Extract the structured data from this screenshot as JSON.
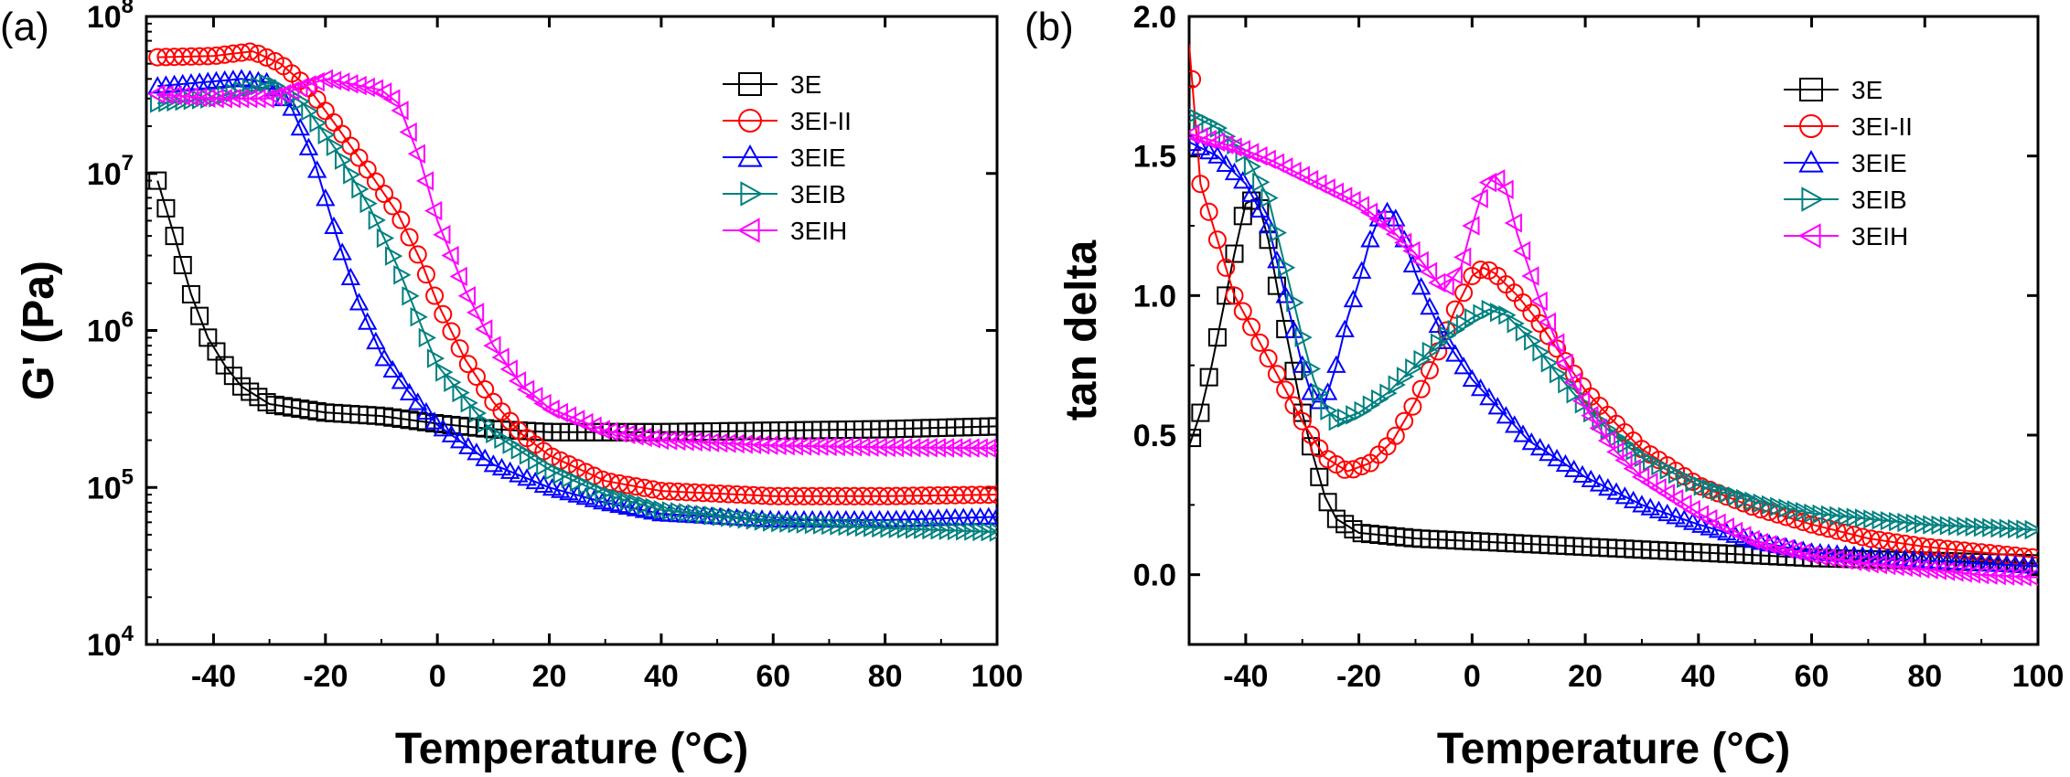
{
  "colors": {
    "3E": "#000000",
    "3EI-II": "#ff0000",
    "3EIE": "#0000ff",
    "3EIB": "#008080",
    "3EIH": "#ff00ff"
  },
  "chart_data": [
    {
      "panel_label": "(a)",
      "type": "scatter",
      "xlabel": "Temperature (°C)",
      "ylabel": "G' (Pa)",
      "xlim": [
        -52,
        100
      ],
      "ylim": [
        10000,
        100000000
      ],
      "yscale": "log",
      "x_ticks": [
        -40,
        -20,
        0,
        20,
        40,
        60,
        80,
        100
      ],
      "y_ticks": [
        {
          "base": "10",
          "exp": "4",
          "value": 10000
        },
        {
          "base": "10",
          "exp": "5",
          "value": 100000
        },
        {
          "base": "10",
          "exp": "6",
          "value": 1000000
        },
        {
          "base": "10",
          "exp": "7",
          "value": 10000000
        },
        {
          "base": "10",
          "exp": "8",
          "value": 100000000
        }
      ],
      "legend": "top-right",
      "series": [
        {
          "name": "3E",
          "marker": "square",
          "points": [
            [
              -50,
              9000000
            ],
            [
              -47,
              4000000
            ],
            [
              -44,
              1700000
            ],
            [
              -41,
              900000
            ],
            [
              -38,
              600000
            ],
            [
              -35,
              440000
            ],
            [
              -30,
              340000
            ],
            [
              -20,
              300000
            ],
            [
              -10,
              285000
            ],
            [
              0,
              255000
            ],
            [
              10,
              235000
            ],
            [
              20,
              225000
            ],
            [
              40,
              225000
            ],
            [
              60,
              230000
            ],
            [
              80,
              235000
            ],
            [
              100,
              245000
            ]
          ]
        },
        {
          "name": "3EI-II",
          "marker": "circle",
          "points": [
            [
              -50,
              55000000
            ],
            [
              -40,
              56000000
            ],
            [
              -33,
              60000000
            ],
            [
              -28,
              50000000
            ],
            [
              -23,
              35000000
            ],
            [
              -18,
              20000000
            ],
            [
              -12,
              10000000
            ],
            [
              -7,
              5500000
            ],
            [
              -3,
              2800000
            ],
            [
              0,
              1500000
            ],
            [
              5,
              650000
            ],
            [
              10,
              350000
            ],
            [
              15,
              220000
            ],
            [
              20,
              160000
            ],
            [
              30,
              110000
            ],
            [
              40,
              95000
            ],
            [
              60,
              88000
            ],
            [
              80,
              88000
            ],
            [
              100,
              90000
            ]
          ]
        },
        {
          "name": "3EIE",
          "marker": "triangle-up",
          "points": [
            [
              -50,
              36000000
            ],
            [
              -35,
              40000000
            ],
            [
              -30,
              38000000
            ],
            [
              -26,
              26000000
            ],
            [
              -22,
              12000000
            ],
            [
              -18,
              4000000
            ],
            [
              -14,
              1500000
            ],
            [
              -10,
              700000
            ],
            [
              -5,
              400000
            ],
            [
              0,
              250000
            ],
            [
              10,
              140000
            ],
            [
              20,
              100000
            ],
            [
              30,
              80000
            ],
            [
              40,
              68000
            ],
            [
              60,
              62000
            ],
            [
              80,
              62000
            ],
            [
              100,
              65000
            ]
          ]
        },
        {
          "name": "3EIB",
          "marker": "triangle-right",
          "points": [
            [
              -50,
              28000000
            ],
            [
              -40,
              30000000
            ],
            [
              -30,
              38000000
            ],
            [
              -24,
              28000000
            ],
            [
              -18,
              14000000
            ],
            [
              -12,
              6000000
            ],
            [
              -7,
              2500000
            ],
            [
              -3,
              1100000
            ],
            [
              0,
              600000
            ],
            [
              10,
              220000
            ],
            [
              20,
              130000
            ],
            [
              30,
              90000
            ],
            [
              40,
              72000
            ],
            [
              60,
              60000
            ],
            [
              80,
              55000
            ],
            [
              100,
              52000
            ]
          ]
        },
        {
          "name": "3EIH",
          "marker": "triangle-left",
          "points": [
            [
              -50,
              32000000
            ],
            [
              -40,
              30000000
            ],
            [
              -30,
              30000000
            ],
            [
              -20,
              40000000
            ],
            [
              -10,
              34000000
            ],
            [
              -7,
              28000000
            ],
            [
              -3,
              12000000
            ],
            [
              0,
              5000000
            ],
            [
              5,
              1800000
            ],
            [
              10,
              800000
            ],
            [
              15,
              450000
            ],
            [
              20,
              320000
            ],
            [
              30,
              230000
            ],
            [
              40,
              200000
            ],
            [
              60,
              185000
            ],
            [
              80,
              180000
            ],
            [
              100,
              178000
            ]
          ]
        }
      ]
    },
    {
      "panel_label": "(b)",
      "type": "scatter",
      "xlabel": "Temperature (°C)",
      "ylabel": "tan delta",
      "xlim": [
        -50,
        100
      ],
      "ylim": [
        -0.25,
        2.0
      ],
      "x_ticks": [
        -40,
        -20,
        0,
        20,
        40,
        60,
        80,
        100
      ],
      "y_ticks": [
        "0.0",
        "0.5",
        "1.0",
        "1.5",
        "2.0"
      ],
      "legend": "top-right",
      "series": [
        {
          "name": "3E",
          "marker": "square",
          "points": [
            [
              -50,
              0.46
            ],
            [
              -48,
              0.58
            ],
            [
              -46,
              0.75
            ],
            [
              -44,
              0.95
            ],
            [
              -42,
              1.15
            ],
            [
              -40,
              1.33
            ],
            [
              -38,
              1.35
            ],
            [
              -36,
              1.2
            ],
            [
              -34,
              0.98
            ],
            [
              -32,
              0.78
            ],
            [
              -30,
              0.58
            ],
            [
              -28,
              0.42
            ],
            [
              -26,
              0.28
            ],
            [
              -24,
              0.2
            ],
            [
              -20,
              0.15
            ],
            [
              -10,
              0.13
            ],
            [
              0,
              0.12
            ],
            [
              20,
              0.1
            ],
            [
              40,
              0.08
            ],
            [
              60,
              0.06
            ],
            [
              80,
              0.05
            ],
            [
              100,
              0.04
            ]
          ]
        },
        {
          "name": "3EI-II",
          "marker": "circle",
          "points": [
            [
              -50,
              1.9
            ],
            [
              -48,
              1.4
            ],
            [
              -45,
              1.2
            ],
            [
              -42,
              1.0
            ],
            [
              -38,
              0.85
            ],
            [
              -34,
              0.7
            ],
            [
              -30,
              0.55
            ],
            [
              -26,
              0.42
            ],
            [
              -22,
              0.37
            ],
            [
              -18,
              0.4
            ],
            [
              -14,
              0.48
            ],
            [
              -10,
              0.62
            ],
            [
              -6,
              0.8
            ],
            [
              -3,
              0.95
            ],
            [
              0,
              1.07
            ],
            [
              2,
              1.1
            ],
            [
              4,
              1.08
            ],
            [
              8,
              1.0
            ],
            [
              12,
              0.9
            ],
            [
              16,
              0.78
            ],
            [
              20,
              0.66
            ],
            [
              25,
              0.55
            ],
            [
              30,
              0.45
            ],
            [
              40,
              0.32
            ],
            [
              50,
              0.24
            ],
            [
              60,
              0.18
            ],
            [
              70,
              0.13
            ],
            [
              80,
              0.1
            ],
            [
              90,
              0.08
            ],
            [
              100,
              0.06
            ]
          ]
        },
        {
          "name": "3EIE",
          "marker": "triangle-up",
          "points": [
            [
              -50,
              1.55
            ],
            [
              -45,
              1.5
            ],
            [
              -40,
              1.4
            ],
            [
              -36,
              1.25
            ],
            [
              -33,
              1.0
            ],
            [
              -30,
              0.75
            ],
            [
              -28,
              0.62
            ],
            [
              -26,
              0.62
            ],
            [
              -24,
              0.75
            ],
            [
              -22,
              0.92
            ],
            [
              -20,
              1.05
            ],
            [
              -18,
              1.2
            ],
            [
              -16,
              1.3
            ],
            [
              -14,
              1.3
            ],
            [
              -12,
              1.2
            ],
            [
              -10,
              1.08
            ],
            [
              -8,
              0.98
            ],
            [
              -5,
              0.85
            ],
            [
              0,
              0.7
            ],
            [
              10,
              0.48
            ],
            [
              20,
              0.35
            ],
            [
              30,
              0.25
            ],
            [
              40,
              0.18
            ],
            [
              50,
              0.12
            ],
            [
              60,
              0.08
            ],
            [
              80,
              0.05
            ],
            [
              100,
              0.03
            ]
          ]
        },
        {
          "name": "3EIB",
          "marker": "triangle-right",
          "points": [
            [
              -50,
              1.65
            ],
            [
              -45,
              1.6
            ],
            [
              -40,
              1.5
            ],
            [
              -36,
              1.35
            ],
            [
              -33,
              1.1
            ],
            [
              -30,
              0.85
            ],
            [
              -28,
              0.7
            ],
            [
              -26,
              0.6
            ],
            [
              -24,
              0.55
            ],
            [
              -20,
              0.58
            ],
            [
              -15,
              0.65
            ],
            [
              -10,
              0.75
            ],
            [
              -5,
              0.85
            ],
            [
              0,
              0.92
            ],
            [
              3,
              0.95
            ],
            [
              6,
              0.93
            ],
            [
              10,
              0.85
            ],
            [
              15,
              0.72
            ],
            [
              20,
              0.6
            ],
            [
              25,
              0.5
            ],
            [
              30,
              0.42
            ],
            [
              40,
              0.32
            ],
            [
              50,
              0.26
            ],
            [
              60,
              0.22
            ],
            [
              70,
              0.2
            ],
            [
              80,
              0.18
            ],
            [
              90,
              0.17
            ],
            [
              100,
              0.16
            ]
          ]
        },
        {
          "name": "3EIH",
          "marker": "triangle-left",
          "points": [
            [
              -50,
              1.58
            ],
            [
              -45,
              1.55
            ],
            [
              -40,
              1.52
            ],
            [
              -35,
              1.48
            ],
            [
              -30,
              1.43
            ],
            [
              -25,
              1.38
            ],
            [
              -20,
              1.33
            ],
            [
              -15,
              1.25
            ],
            [
              -10,
              1.15
            ],
            [
              -5,
              1.02
            ],
            [
              -2,
              1.1
            ],
            [
              0,
              1.25
            ],
            [
              2,
              1.38
            ],
            [
              4,
              1.43
            ],
            [
              6,
              1.38
            ],
            [
              8,
              1.22
            ],
            [
              12,
              0.98
            ],
            [
              16,
              0.78
            ],
            [
              20,
              0.6
            ],
            [
              25,
              0.45
            ],
            [
              30,
              0.35
            ],
            [
              40,
              0.22
            ],
            [
              50,
              0.12
            ],
            [
              60,
              0.07
            ],
            [
              70,
              0.04
            ],
            [
              80,
              0.02
            ],
            [
              90,
              0.0
            ],
            [
              100,
              -0.01
            ]
          ]
        }
      ]
    }
  ]
}
